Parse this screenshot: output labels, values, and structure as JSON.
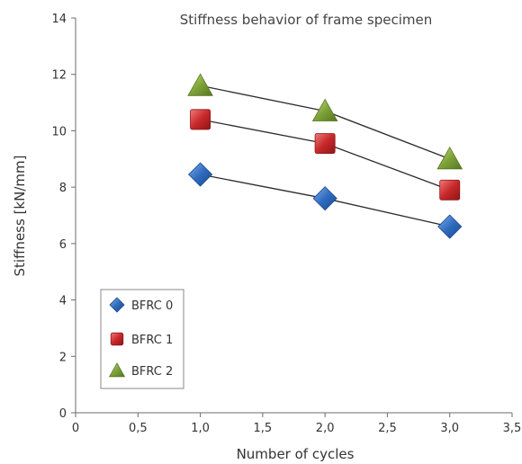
{
  "chart_data": {
    "type": "scatter",
    "title": "Stiffness behavior of frame specimen",
    "xlabel": "Number of cycles",
    "ylabel": "Stiffness [kN/mm]",
    "xlim": [
      0,
      3.5
    ],
    "ylim": [
      0,
      14
    ],
    "x_ticks": [
      "0",
      "0,5",
      "1,0",
      "1,5",
      "2,0",
      "2,5",
      "3,0",
      "3,5"
    ],
    "y_ticks": [
      "0",
      "2",
      "4",
      "6",
      "8",
      "10",
      "12",
      "14"
    ],
    "grid": false,
    "legend_position": "bottom-left",
    "trend_lines": true,
    "series": [
      {
        "name": "BFRC 0",
        "marker": "diamond",
        "color": "#2f6bbf",
        "x": [
          1.0,
          2.0,
          3.0
        ],
        "y": [
          8.45,
          7.6,
          6.6
        ]
      },
      {
        "name": "BFRC 1",
        "marker": "square",
        "color": "#c8282a",
        "x": [
          1.0,
          2.0,
          3.0
        ],
        "y": [
          10.4,
          9.55,
          7.9
        ]
      },
      {
        "name": "BFRC 2",
        "marker": "triangle",
        "color": "#7fa33a",
        "x": [
          1.0,
          2.0,
          3.0
        ],
        "y": [
          11.6,
          10.7,
          9.0
        ]
      }
    ]
  }
}
